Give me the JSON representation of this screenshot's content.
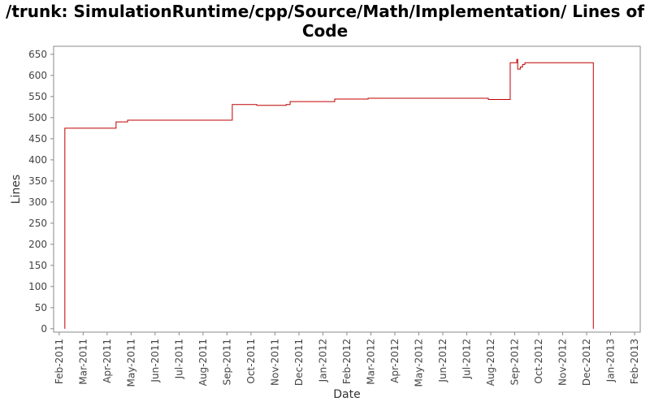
{
  "chart_data": {
    "type": "line",
    "step": "after",
    "title": "/trunk: SimulationRuntime/cpp/Source/Math/Implementation/ Lines of Code",
    "x_label": "Date",
    "y_label": "Lines",
    "x": [
      2011.103,
      2011.103,
      2011.281,
      2011.321,
      2011.685,
      2011.77,
      2011.872,
      2011.886,
      2012.041,
      2012.157,
      2012.575,
      2012.651,
      2012.674,
      2012.677,
      2012.686,
      2012.694,
      2012.702,
      2012.94,
      2012.94
    ],
    "series": [
      {
        "name": "Lines",
        "color": "#c00000",
        "values": [
          0,
          475,
          490,
          494,
          531,
          529,
          531,
          538,
          544,
          546,
          543,
          630,
          638,
          615,
          620,
          626,
          630,
          630,
          0
        ]
      }
    ],
    "xlim": [
      2011.064,
      2013.103
    ],
    "ylim": [
      -8,
      669
    ],
    "yticks": [
      0,
      50,
      100,
      150,
      200,
      250,
      300,
      350,
      400,
      450,
      500,
      550,
      600,
      650
    ],
    "xticks": [
      {
        "value": 2011.0833,
        "label": "Feb-2011"
      },
      {
        "value": 2011.1667,
        "label": "Mar-2011"
      },
      {
        "value": 2011.25,
        "label": "Apr-2011"
      },
      {
        "value": 2011.3333,
        "label": "May-2011"
      },
      {
        "value": 2011.4167,
        "label": "Jun-2011"
      },
      {
        "value": 2011.5,
        "label": "Jul-2011"
      },
      {
        "value": 2011.5833,
        "label": "Aug-2011"
      },
      {
        "value": 2011.6667,
        "label": "Sep-2011"
      },
      {
        "value": 2011.75,
        "label": "Oct-2011"
      },
      {
        "value": 2011.8333,
        "label": "Nov-2011"
      },
      {
        "value": 2011.9167,
        "label": "Dec-2011"
      },
      {
        "value": 2012.0,
        "label": "Jan-2012"
      },
      {
        "value": 2012.0833,
        "label": "Feb-2012"
      },
      {
        "value": 2012.1667,
        "label": "Mar-2012"
      },
      {
        "value": 2012.25,
        "label": "Apr-2012"
      },
      {
        "value": 2012.3333,
        "label": "May-2012"
      },
      {
        "value": 2012.4167,
        "label": "Jun-2012"
      },
      {
        "value": 2012.5,
        "label": "Jul-2012"
      },
      {
        "value": 2012.5833,
        "label": "Aug-2012"
      },
      {
        "value": 2012.6667,
        "label": "Sep-2012"
      },
      {
        "value": 2012.75,
        "label": "Oct-2012"
      },
      {
        "value": 2012.8333,
        "label": "Nov-2012"
      },
      {
        "value": 2012.9167,
        "label": "Dec-2012"
      },
      {
        "value": 2013.0,
        "label": "Jan-2013"
      },
      {
        "value": 2013.0833,
        "label": "Feb-2013"
      }
    ],
    "grid": false
  }
}
